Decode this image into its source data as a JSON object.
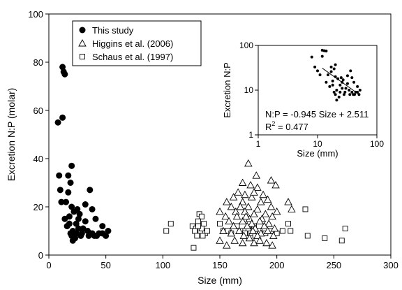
{
  "chart_data": [
    {
      "type": "scatter",
      "xlabel": "Size (mm)",
      "ylabel": "Excretion N:P (molar)",
      "xlim": [
        0,
        300
      ],
      "ylim": [
        0,
        100
      ],
      "x_ticks": [
        "0",
        "50",
        "100",
        "150",
        "200",
        "250",
        "300"
      ],
      "y_ticks": [
        "0",
        "20",
        "40",
        "60",
        "80",
        "100"
      ],
      "grid": false,
      "legend_position": "top-left",
      "series": [
        {
          "name": "This study",
          "marker": "filled-circle",
          "points": [
            [
              12,
              78
            ],
            [
              13,
              76
            ],
            [
              14,
              75
            ],
            [
              12,
              57
            ],
            [
              8,
              55
            ],
            [
              9,
              33
            ],
            [
              17,
              33
            ],
            [
              10,
              27
            ],
            [
              20,
              37
            ],
            [
              19,
              30
            ],
            [
              17,
              26
            ],
            [
              11,
              22
            ],
            [
              15,
              22
            ],
            [
              20,
              20
            ],
            [
              25,
              19
            ],
            [
              32,
              21
            ],
            [
              36,
              27
            ],
            [
              14,
              15
            ],
            [
              18,
              16
            ],
            [
              22,
              18
            ],
            [
              27,
              17
            ],
            [
              38,
              19
            ],
            [
              18,
              13
            ],
            [
              24,
              13
            ],
            [
              32,
              14
            ],
            [
              41,
              15
            ],
            [
              16,
              12
            ],
            [
              21,
              10
            ],
            [
              26,
              11
            ],
            [
              19,
              9
            ],
            [
              24,
              9
            ],
            [
              29,
              9
            ],
            [
              34,
              10
            ],
            [
              20,
              8
            ],
            [
              23,
              7
            ],
            [
              28,
              8
            ],
            [
              38,
              9
            ],
            [
              44,
              9
            ],
            [
              52,
              10
            ],
            [
              47,
              12
            ],
            [
              42,
              8
            ],
            [
              50,
              8
            ],
            [
              35,
              8
            ],
            [
              40,
              8
            ],
            [
              47,
              9
            ],
            [
              21,
              6
            ],
            [
              30,
              11
            ],
            [
              26,
              15
            ]
          ]
        },
        {
          "name": "Higgins et al. (2006)",
          "marker": "open-triangle",
          "points": [
            [
              173,
              43
            ],
            [
              175,
              38
            ],
            [
              182,
              33
            ],
            [
              170,
              30
            ],
            [
              177,
              29
            ],
            [
              195,
              31
            ],
            [
              183,
              28
            ],
            [
              199,
              29
            ],
            [
              166,
              26
            ],
            [
              172,
              25
            ],
            [
              162,
              24
            ],
            [
              178,
              24
            ],
            [
              188,
              25
            ],
            [
              192,
              23
            ],
            [
              156,
              22
            ],
            [
              170,
              22
            ],
            [
              186,
              22
            ],
            [
              210,
              22
            ],
            [
              160,
              20
            ],
            [
              168,
              20
            ],
            [
              175,
              20
            ],
            [
              183,
              19
            ],
            [
              195,
              20
            ],
            [
              213,
              19
            ],
            [
              150,
              18
            ],
            [
              164,
              18
            ],
            [
              172,
              18
            ],
            [
              180,
              17
            ],
            [
              190,
              17
            ],
            [
              200,
              18
            ],
            [
              155,
              16
            ],
            [
              165,
              16
            ],
            [
              176,
              15
            ],
            [
              187,
              15
            ],
            [
              196,
              16
            ],
            [
              158,
              14
            ],
            [
              170,
              14
            ],
            [
              178,
              13
            ],
            [
              185,
              14
            ],
            [
              193,
              13
            ],
            [
              162,
              12
            ],
            [
              174,
              12
            ],
            [
              181,
              11
            ],
            [
              189,
              12
            ],
            [
              198,
              11
            ],
            [
              153,
              10
            ],
            [
              167,
              10
            ],
            [
              179,
              10
            ],
            [
              186,
              9
            ],
            [
              192,
              10
            ],
            [
              160,
              9
            ],
            [
              171,
              8
            ],
            [
              183,
              8
            ],
            [
              197,
              8
            ],
            [
              150,
              6
            ],
            [
              163,
              6
            ],
            [
              176,
              7
            ],
            [
              185,
              6
            ],
            [
              191,
              5
            ],
            [
              156,
              4
            ],
            [
              170,
              5
            ],
            [
              180,
              5
            ],
            [
              196,
              4
            ],
            [
              173,
              16
            ],
            [
              180,
              26
            ]
          ]
        },
        {
          "name": "Schaus et al. (1997)",
          "marker": "open-square",
          "points": [
            [
              107,
              13
            ],
            [
              103,
              10
            ],
            [
              126,
              12
            ],
            [
              129,
              11
            ],
            [
              132,
              17
            ],
            [
              134,
              16
            ],
            [
              131,
              14
            ],
            [
              136,
              13
            ],
            [
              128,
              10
            ],
            [
              133,
              10
            ],
            [
              137,
              9
            ],
            [
              130,
              8
            ],
            [
              135,
              8
            ],
            [
              139,
              10
            ],
            [
              127,
              3
            ],
            [
              134,
              11
            ],
            [
              131,
              12
            ],
            [
              150,
              13
            ],
            [
              153,
              10
            ],
            [
              157,
              10
            ],
            [
              160,
              9
            ],
            [
              165,
              12
            ],
            [
              168,
              10
            ],
            [
              172,
              9
            ],
            [
              177,
              9
            ],
            [
              181,
              8
            ],
            [
              185,
              10
            ],
            [
              190,
              9
            ],
            [
              195,
              10
            ],
            [
              200,
              9
            ],
            [
              205,
              10
            ],
            [
              212,
              10
            ],
            [
              225,
              19
            ],
            [
              227,
              8
            ],
            [
              242,
              7
            ],
            [
              257,
              6
            ],
            [
              260,
              11
            ],
            [
              210,
              13
            ],
            [
              180,
              12
            ],
            [
              175,
              11
            ]
          ]
        }
      ]
    },
    {
      "type": "scatter",
      "role": "inset",
      "xlabel": "Size (mm)",
      "ylabel": "Excretion N:P",
      "xscale": "log",
      "yscale": "log",
      "xlim": [
        1,
        100
      ],
      "ylim": [
        1,
        100
      ],
      "x_ticks": [
        "1",
        "10",
        "100"
      ],
      "y_ticks": [
        "1",
        "10",
        "100"
      ],
      "annotation_equation": "N:P = -0.945 Size + 2.511",
      "annotation_r2_prefix": "R",
      "annotation_r2_sup": "2",
      "annotation_r2_value": " = 0.477",
      "fit_line": {
        "slope_log": -0.945,
        "intercept_log": 2.511,
        "x_range": [
          12,
          52
        ]
      },
      "series": [
        {
          "marker": "filled-dot",
          "points": [
            [
              12,
              78
            ],
            [
              13,
              76
            ],
            [
              14,
              75
            ],
            [
              12,
              57
            ],
            [
              8,
              55
            ],
            [
              9,
              33
            ],
            [
              17,
              33
            ],
            [
              10,
              27
            ],
            [
              20,
              37
            ],
            [
              19,
              30
            ],
            [
              17,
              26
            ],
            [
              11,
              22
            ],
            [
              15,
              22
            ],
            [
              20,
              20
            ],
            [
              25,
              19
            ],
            [
              32,
              21
            ],
            [
              36,
              27
            ],
            [
              14,
              15
            ],
            [
              18,
              16
            ],
            [
              22,
              18
            ],
            [
              27,
              17
            ],
            [
              38,
              19
            ],
            [
              18,
              13
            ],
            [
              24,
              13
            ],
            [
              32,
              14
            ],
            [
              41,
              15
            ],
            [
              16,
              12
            ],
            [
              21,
              10
            ],
            [
              26,
              11
            ],
            [
              19,
              9
            ],
            [
              24,
              9
            ],
            [
              29,
              9
            ],
            [
              34,
              10
            ],
            [
              20,
              8
            ],
            [
              23,
              7
            ],
            [
              28,
              8
            ],
            [
              38,
              9
            ],
            [
              44,
              9
            ],
            [
              52,
              10
            ],
            [
              47,
              12
            ],
            [
              42,
              8
            ],
            [
              50,
              8
            ],
            [
              35,
              8
            ],
            [
              40,
              8
            ],
            [
              47,
              9
            ],
            [
              21,
              6
            ],
            [
              30,
              11
            ],
            [
              26,
              15
            ]
          ]
        }
      ]
    }
  ]
}
